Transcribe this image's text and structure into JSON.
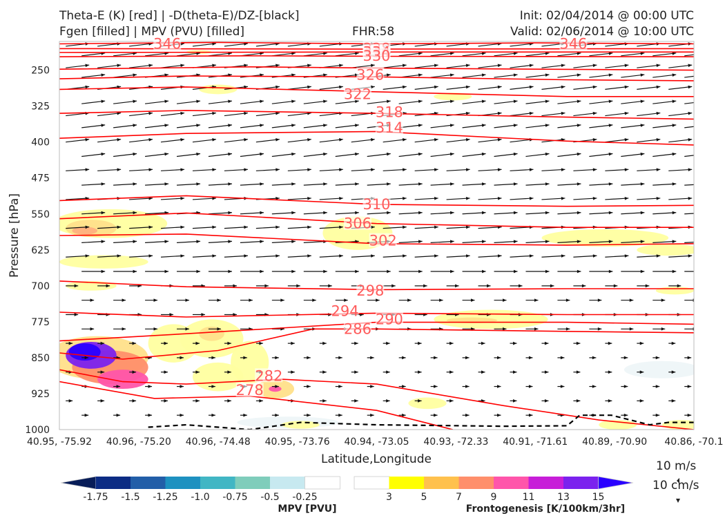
{
  "header": {
    "left_line1": "Theta-E (K) [red] | -D(theta-E)/DZ-[black]",
    "left_line2": "Fgen [filled] | MPV (PVU) [filled]",
    "center": "FHR:58",
    "right_line1": "Init: 02/04/2014 @ 00:00 UTC",
    "right_line2": "Valid: 02/06/2014 @ 10:00 UTC"
  },
  "chart_data": {
    "type": "contour",
    "title": "Theta-E (K) [red] | -D(theta-E)/DZ-[black] / Fgen [filled] | MPV (PVU) [filled]",
    "xlabel": "Latitude,Longitude",
    "ylabel": "Pressure [hPa]",
    "x_ticks": [
      "40.95, -75.92",
      "40.96, -75.20",
      "40.96, -74.48",
      "40.95, -73.76",
      "40.94, -73.05",
      "40.93, -72.33",
      "40.91, -71.61",
      "40.89, -70.90",
      "40.86, -70.1"
    ],
    "y_ticks": [
      250,
      325,
      400,
      475,
      550,
      625,
      700,
      775,
      850,
      925,
      1000
    ],
    "ylim": [
      1000,
      190
    ],
    "theta_e_labels": [
      {
        "value": "346",
        "x": 0.17,
        "p": 195
      },
      {
        "value": "346",
        "x": 0.81,
        "p": 195
      },
      {
        "value": "338",
        "x": 0.5,
        "p": 205
      },
      {
        "value": "334",
        "x": 0.5,
        "p": 212
      },
      {
        "value": "330",
        "x": 0.5,
        "p": 220
      },
      {
        "value": "326",
        "x": 0.49,
        "p": 260
      },
      {
        "value": "322",
        "x": 0.47,
        "p": 300
      },
      {
        "value": "318",
        "x": 0.52,
        "p": 338
      },
      {
        "value": "314",
        "x": 0.52,
        "p": 370
      },
      {
        "value": "310",
        "x": 0.5,
        "p": 530
      },
      {
        "value": "306",
        "x": 0.47,
        "p": 570
      },
      {
        "value": "302",
        "x": 0.51,
        "p": 606
      },
      {
        "value": "298",
        "x": 0.49,
        "p": 710
      },
      {
        "value": "294",
        "x": 0.45,
        "p": 753
      },
      {
        "value": "290",
        "x": 0.52,
        "p": 770
      },
      {
        "value": "286",
        "x": 0.47,
        "p": 790
      },
      {
        "value": "282",
        "x": 0.33,
        "p": 888
      },
      {
        "value": "278",
        "x": 0.3,
        "p": 918
      }
    ],
    "theta_e_lines": [
      [
        [
          0,
          195
        ],
        [
          0.25,
          192
        ],
        [
          0.5,
          195
        ],
        [
          0.75,
          193
        ],
        [
          1,
          195
        ]
      ],
      [
        [
          0,
          205
        ],
        [
          0.5,
          206
        ],
        [
          1,
          205
        ]
      ],
      [
        [
          0,
          213
        ],
        [
          0.5,
          212
        ],
        [
          1,
          212
        ]
      ],
      [
        [
          0,
          222
        ],
        [
          0.3,
          220
        ],
        [
          0.5,
          221
        ],
        [
          1,
          222
        ]
      ],
      [
        [
          0,
          248
        ],
        [
          0.3,
          243
        ],
        [
          0.55,
          246
        ],
        [
          1,
          250
        ]
      ],
      [
        [
          0,
          268
        ],
        [
          0.2,
          262
        ],
        [
          0.5,
          264
        ],
        [
          0.8,
          270
        ],
        [
          1,
          272
        ]
      ],
      [
        [
          0,
          290
        ],
        [
          0.2,
          285
        ],
        [
          0.5,
          295
        ],
        [
          0.8,
          305
        ],
        [
          1,
          305
        ]
      ],
      [
        [
          0,
          340
        ],
        [
          0.2,
          334
        ],
        [
          0.5,
          340
        ],
        [
          0.8,
          348
        ],
        [
          1,
          352
        ]
      ],
      [
        [
          0,
          392
        ],
        [
          0.2,
          382
        ],
        [
          0.5,
          378
        ],
        [
          0.8,
          398
        ],
        [
          1,
          406
        ]
      ],
      [
        [
          0,
          522
        ],
        [
          0.2,
          512
        ],
        [
          0.5,
          530
        ],
        [
          0.8,
          534
        ],
        [
          1,
          532
        ]
      ],
      [
        [
          0,
          560
        ],
        [
          0.2,
          548
        ],
        [
          0.5,
          570
        ],
        [
          0.8,
          578
        ],
        [
          1,
          578
        ]
      ],
      [
        [
          0,
          595
        ],
        [
          0.2,
          592
        ],
        [
          0.5,
          612
        ],
        [
          0.8,
          615
        ],
        [
          1,
          612
        ]
      ],
      [
        [
          0,
          690
        ],
        [
          0.2,
          702
        ],
        [
          0.5,
          708
        ],
        [
          0.8,
          706
        ],
        [
          1,
          706
        ]
      ],
      [
        [
          0,
          755
        ],
        [
          0.2,
          765
        ],
        [
          0.5,
          757
        ],
        [
          0.8,
          760
        ],
        [
          1,
          760
        ]
      ],
      [
        [
          0,
          815
        ],
        [
          0.2,
          800
        ],
        [
          0.5,
          776
        ],
        [
          0.8,
          776
        ],
        [
          1,
          780
        ]
      ],
      [
        [
          0,
          840
        ],
        [
          0.1,
          853
        ],
        [
          0.25,
          835
        ],
        [
          0.4,
          790
        ],
        [
          0.5,
          790
        ],
        [
          0.8,
          795
        ],
        [
          1,
          798
        ]
      ],
      [
        [
          0,
          875
        ],
        [
          0.1,
          900
        ],
        [
          0.2,
          905
        ],
        [
          0.35,
          895
        ],
        [
          0.5,
          905
        ],
        [
          0.7,
          950
        ],
        [
          0.85,
          980
        ],
        [
          1,
          1000
        ]
      ],
      [
        [
          0,
          900
        ],
        [
          0.15,
          935
        ],
        [
          0.3,
          930
        ],
        [
          0.5,
          960
        ],
        [
          0.62,
          1000
        ]
      ]
    ],
    "legend_mpv": {
      "label": "MPV [PVU]",
      "ticks": [
        "-1.75",
        "-1.5",
        "-1.25",
        "-1.0",
        "-0.75",
        "-0.5",
        "-0.25"
      ],
      "colors": [
        "#081d58",
        "#0c2c84",
        "#225ea8",
        "#1d91c0",
        "#41b6c4",
        "#7fcdbb",
        "#c7e9f0",
        "#ffffff"
      ]
    },
    "legend_fgen": {
      "label": "Frontogenesis [K/100km/3hr]",
      "ticks": [
        "3",
        "5",
        "7",
        "9",
        "11",
        "13",
        "15"
      ],
      "colors": [
        "#ffffff",
        "#ffff00",
        "#ffc14d",
        "#ff8f6b",
        "#ff55aa",
        "#c71ed8",
        "#7b22ee",
        "#2a00ff"
      ]
    },
    "wind_scale": {
      "horizontal": "10 m/s",
      "vertical": "10 cm/s"
    }
  }
}
